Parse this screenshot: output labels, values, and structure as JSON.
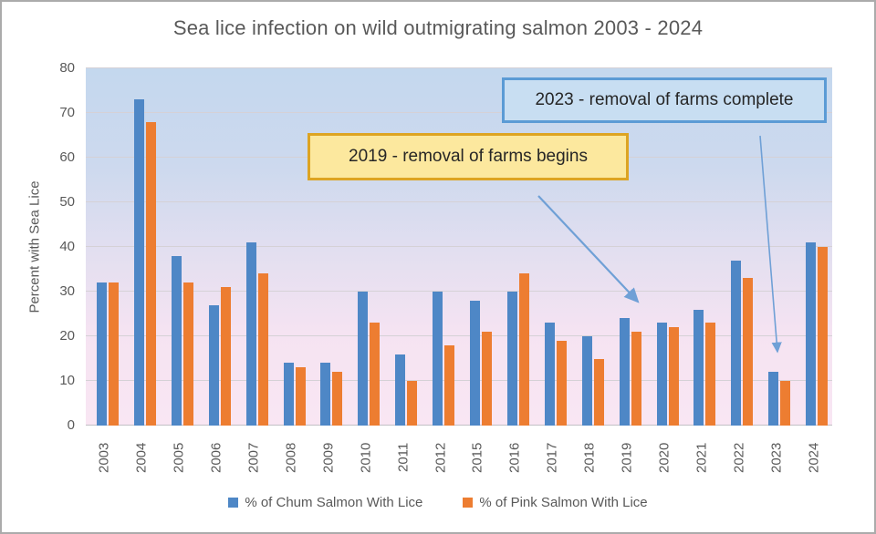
{
  "title": "Sea lice infection on wild outmigrating salmon 2003 - 2024",
  "colors": {
    "chum_bar": "#4e87c6",
    "pink_bar": "#ed7d31",
    "plot_bg_top": "#c4d8ee",
    "plot_bg_bottom": "#f9e6f3",
    "gridline": "#d5d1d6",
    "annotation_2019_fill": "#fce89e",
    "annotation_2019_border": "#dda422",
    "annotation_2023_fill": "#c8def2",
    "annotation_2023_border": "#5b9bd5",
    "arrow": "#6fa0d6",
    "text": "#595959"
  },
  "chart_data": {
    "type": "bar",
    "title": "Sea lice infection on wild outmigrating salmon 2003 - 2024",
    "xlabel": "",
    "ylabel": "Percent with Sea Lice",
    "ylim": [
      0,
      80
    ],
    "yticks": [
      0,
      10,
      20,
      30,
      40,
      50,
      60,
      70,
      80
    ],
    "grid": true,
    "legend_position": "bottom-center",
    "categories": [
      "2003",
      "2004",
      "2005",
      "2006",
      "2007",
      "2008",
      "2009",
      "2010",
      "2011",
      "2012",
      "2015",
      "2016",
      "2017",
      "2018",
      "2019",
      "2020",
      "2021",
      "2022",
      "2023",
      "2024"
    ],
    "series": [
      {
        "name": "% of Chum Salmon With Lice",
        "color": "#4e87c6",
        "values": [
          32,
          73,
          38,
          27,
          41,
          14,
          14,
          30,
          16,
          30,
          28,
          30,
          23,
          20,
          24,
          23,
          26,
          37,
          12,
          41
        ]
      },
      {
        "name": "% of Pink Salmon With Lice",
        "color": "#ed7d31",
        "values": [
          32,
          68,
          32,
          31,
          34,
          13,
          12,
          23,
          10,
          18,
          21,
          34,
          19,
          15,
          21,
          22,
          23,
          33,
          10,
          40
        ]
      }
    ],
    "annotations": [
      {
        "text": "2019 - removal of farms begins",
        "target_year": "2019",
        "style": "yellow-box"
      },
      {
        "text": "2023 - removal of farms complete",
        "target_year": "2023",
        "style": "blue-box"
      }
    ]
  }
}
